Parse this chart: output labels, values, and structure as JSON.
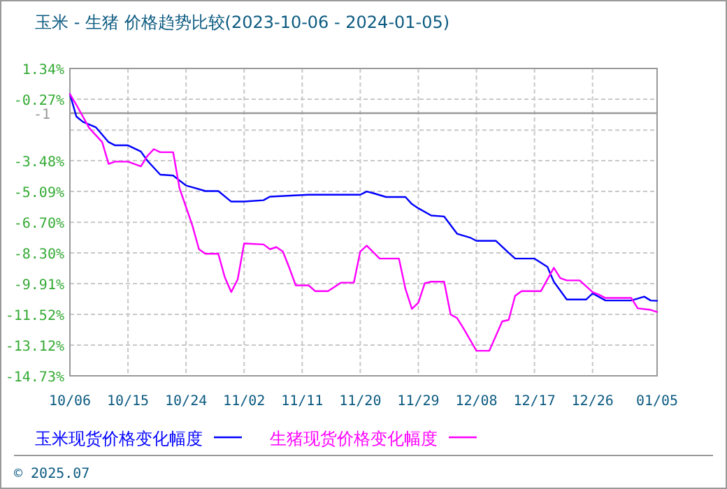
{
  "chart_data": {
    "type": "line",
    "title": "玉米 - 生猪 价格趋势比较(2023-10-06 - 2024-01-05)",
    "annotations": [
      "© 2025.07"
    ],
    "xlim": [
      "2023-10-06",
      "2024-01-05"
    ],
    "xticks": [
      {
        "value": "2023-10-06",
        "label": "10/06"
      },
      {
        "value": "2023-10-15",
        "label": "10/15"
      },
      {
        "value": "2023-10-24",
        "label": "10/24"
      },
      {
        "value": "2023-11-02",
        "label": "11/02"
      },
      {
        "value": "2023-11-11",
        "label": "11/11"
      },
      {
        "value": "2023-11-20",
        "label": "11/20"
      },
      {
        "value": "2023-11-29",
        "label": "11/29"
      },
      {
        "value": "2023-12-08",
        "label": "12/08"
      },
      {
        "value": "2023-12-17",
        "label": "12/17"
      },
      {
        "value": "2023-12-26",
        "label": "12/26"
      },
      {
        "value": "2024-01-05",
        "label": "01/05"
      }
    ],
    "ylim": [
      -14.73,
      1.34
    ],
    "yticks": [
      {
        "value": 1.34,
        "label": "1.34%"
      },
      {
        "value": -0.27,
        "label": "-0.27%"
      },
      {
        "value": -1.88,
        "label": null
      },
      {
        "value": -3.48,
        "label": "-3.48%"
      },
      {
        "value": -5.09,
        "label": "-5.09%"
      },
      {
        "value": -6.7,
        "label": "-6.70%"
      },
      {
        "value": -8.3,
        "label": "-8.30%"
      },
      {
        "value": -9.91,
        "label": "-9.91%"
      },
      {
        "value": -11.52,
        "label": "-11.52%"
      },
      {
        "value": -13.12,
        "label": "-13.12%"
      },
      {
        "value": -14.73,
        "label": "-14.73%"
      }
    ],
    "ref_lines": [
      {
        "axis": "y",
        "value": -1,
        "label": "-1",
        "color": "#999999",
        "line_style": "solid"
      }
    ],
    "grid": true,
    "legend": "bottom",
    "line_style": "solid",
    "series": [
      {
        "name": "玉米现货价格变化幅度",
        "color": "#0000ff",
        "x": [
          "2023-10-06",
          "2023-10-07",
          "2023-10-08",
          "2023-10-10",
          "2023-10-12",
          "2023-10-13",
          "2023-10-15",
          "2023-10-17",
          "2023-10-18",
          "2023-10-20",
          "2023-10-22",
          "2023-10-24",
          "2023-10-25",
          "2023-10-27",
          "2023-10-29",
          "2023-10-31",
          "2023-11-02",
          "2023-11-05",
          "2023-11-06",
          "2023-11-12",
          "2023-11-20",
          "2023-11-21",
          "2023-11-22",
          "2023-11-24",
          "2023-11-27",
          "2023-11-28",
          "2023-11-29",
          "2023-12-01",
          "2023-12-03",
          "2023-12-05",
          "2023-12-07",
          "2023-12-08",
          "2023-12-11",
          "2023-12-13",
          "2023-12-14",
          "2023-12-17",
          "2023-12-19",
          "2023-12-20",
          "2023-12-22",
          "2023-12-25",
          "2023-12-26",
          "2023-12-28",
          "2024-01-01",
          "2024-01-03",
          "2024-01-04",
          "2024-01-05"
        ],
        "values": [
          0,
          -1.17,
          -1.45,
          -1.73,
          -2.51,
          -2.68,
          -2.68,
          -3.0,
          -3.48,
          -4.21,
          -4.26,
          -4.78,
          -4.87,
          -5.07,
          -5.07,
          -5.62,
          -5.62,
          -5.55,
          -5.36,
          -5.26,
          -5.26,
          -5.09,
          -5.18,
          -5.38,
          -5.38,
          -5.75,
          -5.97,
          -6.35,
          -6.4,
          -7.3,
          -7.5,
          -7.67,
          -7.67,
          -8.3,
          -8.6,
          -8.6,
          -9.03,
          -9.81,
          -10.74,
          -10.74,
          -10.42,
          -10.79,
          -10.79,
          -10.59,
          -10.79,
          -10.81
        ]
      },
      {
        "name": "生猪现货价格变化幅度",
        "color": "#ff00ff",
        "x": [
          "2023-10-06",
          "2023-10-07",
          "2023-10-09",
          "2023-10-11",
          "2023-10-12",
          "2023-10-13",
          "2023-10-15",
          "2023-10-17",
          "2023-10-18",
          "2023-10-19",
          "2023-10-20",
          "2023-10-22",
          "2023-10-23",
          "2023-10-24",
          "2023-10-25",
          "2023-10-26",
          "2023-10-27",
          "2023-10-29",
          "2023-10-30",
          "2023-10-31",
          "2023-11-01",
          "2023-11-02",
          "2023-11-05",
          "2023-11-06",
          "2023-11-07",
          "2023-11-08",
          "2023-11-09",
          "2023-11-10",
          "2023-11-12",
          "2023-11-13",
          "2023-11-15",
          "2023-11-17",
          "2023-11-19",
          "2023-11-20",
          "2023-11-21",
          "2023-11-23",
          "2023-11-26",
          "2023-11-27",
          "2023-11-28",
          "2023-11-29",
          "2023-11-30",
          "2023-12-01",
          "2023-12-03",
          "2023-12-04",
          "2023-12-05",
          "2023-12-06",
          "2023-12-08",
          "2023-12-10",
          "2023-12-12",
          "2023-12-13",
          "2023-12-14",
          "2023-12-15",
          "2023-12-18",
          "2023-12-20",
          "2023-12-21",
          "2023-12-22",
          "2023-12-24",
          "2023-12-26",
          "2023-12-27",
          "2023-12-28",
          "2024-01-01",
          "2024-01-02",
          "2024-01-04",
          "2024-01-05"
        ],
        "values": [
          0,
          -0.56,
          -1.78,
          -2.51,
          -3.65,
          -3.53,
          -3.53,
          -3.78,
          -3.24,
          -2.88,
          -3.04,
          -3.04,
          -4.94,
          -5.91,
          -6.89,
          -8.11,
          -8.35,
          -8.35,
          -9.57,
          -10.35,
          -9.69,
          -7.81,
          -7.86,
          -8.11,
          -8.0,
          -8.23,
          -9.08,
          -10.0,
          -10.0,
          -10.3,
          -10.3,
          -9.86,
          -9.86,
          -8.23,
          -7.92,
          -8.6,
          -8.6,
          -10.18,
          -11.23,
          -10.91,
          -9.89,
          -9.81,
          -9.81,
          -11.52,
          -11.71,
          -12.25,
          -13.42,
          -13.42,
          -11.88,
          -11.81,
          -10.55,
          -10.3,
          -10.3,
          -9.08,
          -9.62,
          -9.74,
          -9.74,
          -10.35,
          -10.49,
          -10.66,
          -10.66,
          -11.2,
          -11.28,
          -11.39
        ]
      }
    ]
  }
}
